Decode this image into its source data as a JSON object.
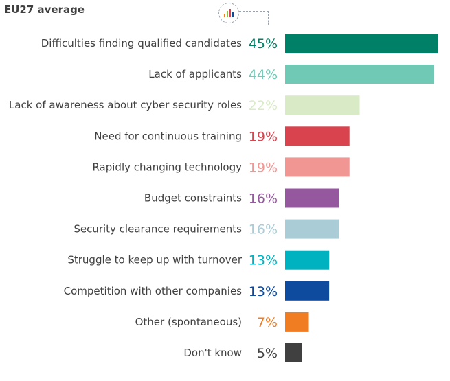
{
  "chart_data": {
    "type": "bar",
    "orientation": "horizontal",
    "title": "EU27 average",
    "categories": [
      "Difficulties finding qualified candidates",
      "Lack of applicants",
      "Lack of awareness about cyber security roles",
      "Need for continuous training",
      "Rapidly changing technology",
      "Budget constraints",
      "Security clearance requirements",
      "Struggle to keep up with turnover",
      "Competition with other companies",
      "Other (spontaneous)",
      "Don't know"
    ],
    "values": [
      45,
      44,
      22,
      19,
      19,
      16,
      16,
      13,
      13,
      7,
      5
    ],
    "value_labels": [
      "45%",
      "44%",
      "22%",
      "19%",
      "19%",
      "16%",
      "16%",
      "13%",
      "13%",
      "7%",
      "5%"
    ],
    "colors": [
      "#008066",
      "#6FC9B5",
      "#D9EBC6",
      "#D9434E",
      "#F29693",
      "#95589F",
      "#A9CCD6",
      "#00B1BF",
      "#0E4B9E",
      "#F07D22",
      "#404040"
    ],
    "grid": false,
    "legend": "none"
  },
  "icons": {
    "chart_icon": "bar-chart-icon"
  }
}
